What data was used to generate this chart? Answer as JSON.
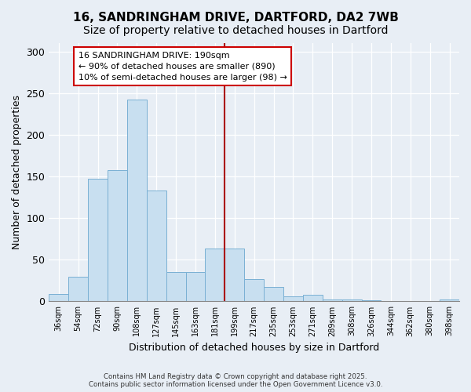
{
  "title": "16, SANDRINGHAM DRIVE, DARTFORD, DA2 7WB",
  "subtitle": "Size of property relative to detached houses in Dartford",
  "xlabel": "Distribution of detached houses by size in Dartford",
  "ylabel": "Number of detached properties",
  "bar_labels": [
    "36sqm",
    "54sqm",
    "72sqm",
    "90sqm",
    "108sqm",
    "127sqm",
    "145sqm",
    "163sqm",
    "181sqm",
    "199sqm",
    "217sqm",
    "235sqm",
    "253sqm",
    "271sqm",
    "289sqm",
    "308sqm",
    "326sqm",
    "344sqm",
    "362sqm",
    "380sqm",
    "398sqm"
  ],
  "bar_values": [
    9,
    30,
    147,
    158,
    242,
    133,
    35,
    35,
    63,
    63,
    27,
    17,
    6,
    8,
    2,
    2,
    1,
    0,
    0,
    0,
    2
  ],
  "bar_color": "#c8dff0",
  "bar_edge_color": "#7ab0d4",
  "vline_color": "#aa0000",
  "annotation_title": "16 SANDRINGHAM DRIVE: 190sqm",
  "annotation_line1": "← 90% of detached houses are smaller (890)",
  "annotation_line2": "10% of semi-detached houses are larger (98) →",
  "annotation_box_color": "#ffffff",
  "annotation_box_edge": "#cc0000",
  "ylim": [
    0,
    310
  ],
  "yticks": [
    0,
    50,
    100,
    150,
    200,
    250,
    300
  ],
  "footer1": "Contains HM Land Registry data © Crown copyright and database right 2025.",
  "footer2": "Contains public sector information licensed under the Open Government Licence v3.0.",
  "bg_color": "#e8eef5",
  "plot_bg_color": "#e8eef5",
  "grid_color": "#ffffff",
  "title_fontsize": 11,
  "subtitle_fontsize": 10
}
